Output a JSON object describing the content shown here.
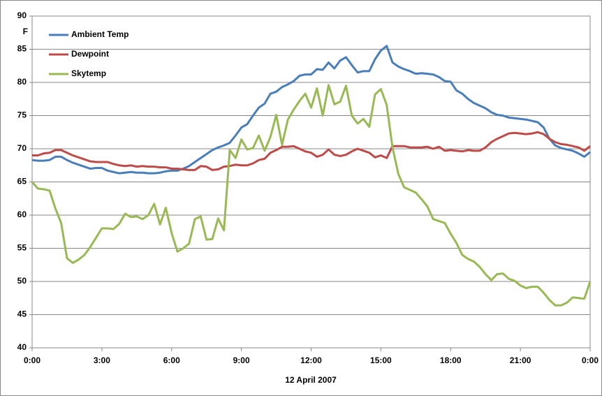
{
  "chart_data": {
    "type": "line",
    "y_label": "F",
    "x_label": "12 April 2007",
    "xlim": [
      0,
      24
    ],
    "ylim": [
      40,
      90
    ],
    "yticks": [
      40,
      45,
      50,
      55,
      60,
      65,
      70,
      75,
      80,
      85,
      90
    ],
    "xticks": [
      {
        "value": 0,
        "label": "0:00"
      },
      {
        "value": 3,
        "label": "3:00"
      },
      {
        "value": 6,
        "label": "6:00"
      },
      {
        "value": 9,
        "label": "9:00"
      },
      {
        "value": 12,
        "label": "12:00"
      },
      {
        "value": 15,
        "label": "15:00"
      },
      {
        "value": 18,
        "label": "18:00"
      },
      {
        "value": 21,
        "label": "21:00"
      },
      {
        "value": 24,
        "label": "0:00"
      }
    ],
    "grid": true,
    "legend": "upper left",
    "x": [
      0,
      0.25,
      0.5,
      0.75,
      1,
      1.25,
      1.5,
      1.75,
      2,
      2.25,
      2.5,
      2.75,
      3,
      3.25,
      3.5,
      3.75,
      4,
      4.25,
      4.5,
      4.75,
      5,
      5.25,
      5.5,
      5.75,
      6,
      6.25,
      6.5,
      6.75,
      7,
      7.25,
      7.5,
      7.75,
      8,
      8.25,
      8.5,
      8.75,
      9,
      9.25,
      9.5,
      9.75,
      10,
      10.25,
      10.5,
      10.75,
      11,
      11.25,
      11.5,
      11.75,
      12,
      12.25,
      12.5,
      12.75,
      13,
      13.25,
      13.5,
      13.75,
      14,
      14.25,
      14.5,
      14.75,
      15,
      15.25,
      15.5,
      15.75,
      16,
      16.25,
      16.5,
      16.75,
      17,
      17.25,
      17.5,
      17.75,
      18,
      18.25,
      18.5,
      18.75,
      19,
      19.25,
      19.5,
      19.75,
      20,
      20.25,
      20.5,
      20.75,
      21,
      21.25,
      21.5,
      21.75,
      22,
      22.25,
      22.5,
      22.75,
      23,
      23.25,
      23.5,
      23.75,
      24
    ],
    "series": [
      {
        "name": "Ambient Temp",
        "color": "#4a7ebb",
        "values": [
          68.3,
          68.2,
          68.2,
          68.3,
          68.8,
          68.8,
          68.3,
          67.9,
          67.6,
          67.3,
          67.0,
          67.1,
          67.1,
          66.7,
          66.5,
          66.3,
          66.4,
          66.5,
          66.4,
          66.4,
          66.3,
          66.3,
          66.4,
          66.6,
          66.7,
          66.7,
          67.0,
          67.4,
          68.0,
          68.6,
          69.2,
          69.8,
          70.2,
          70.5,
          70.9,
          72.0,
          73.2,
          73.7,
          75.0,
          76.2,
          76.8,
          78.3,
          78.6,
          79.3,
          79.7,
          80.2,
          81.0,
          81.2,
          81.2,
          82.0,
          81.9,
          83.0,
          82.1,
          83.3,
          83.8,
          82.6,
          81.5,
          81.7,
          81.7,
          83.5,
          84.8,
          85.5,
          83.0,
          82.4,
          82.0,
          81.7,
          81.3,
          81.4,
          81.3,
          81.2,
          80.8,
          80.2,
          80.1,
          78.8,
          78.3,
          77.5,
          76.9,
          76.5,
          76.1,
          75.5,
          75.1,
          75.0,
          74.7,
          74.6,
          74.5,
          74.4,
          74.2,
          74.0,
          73.2,
          71.5,
          70.5,
          70.1,
          69.9,
          69.7,
          69.3,
          68.8,
          69.5
        ]
      },
      {
        "name": "Dewpoint",
        "color": "#be4b48",
        "values": [
          69.0,
          69.0,
          69.3,
          69.4,
          69.8,
          69.8,
          69.4,
          69.0,
          68.7,
          68.4,
          68.1,
          68.0,
          68.0,
          68.0,
          67.7,
          67.5,
          67.4,
          67.5,
          67.3,
          67.4,
          67.3,
          67.3,
          67.2,
          67.2,
          67.0,
          67.0,
          66.9,
          66.8,
          66.8,
          67.4,
          67.3,
          66.8,
          66.9,
          67.3,
          67.4,
          67.6,
          67.5,
          67.5,
          67.8,
          68.3,
          68.5,
          69.4,
          69.8,
          70.3,
          70.3,
          70.4,
          70.0,
          69.6,
          69.4,
          68.8,
          69.1,
          69.9,
          69.1,
          68.9,
          69.1,
          69.6,
          70.0,
          69.7,
          69.4,
          68.7,
          69.0,
          68.6,
          70.4,
          70.4,
          70.4,
          70.2,
          70.2,
          70.2,
          70.3,
          70.0,
          70.3,
          69.7,
          69.8,
          69.7,
          69.6,
          69.8,
          69.7,
          69.7,
          70.2,
          71.0,
          71.5,
          71.9,
          72.3,
          72.4,
          72.3,
          72.2,
          72.3,
          72.5,
          72.2,
          71.5,
          71.0,
          70.7,
          70.6,
          70.4,
          70.2,
          69.7,
          70.4
        ]
      },
      {
        "name": "Skytemp",
        "color": "#98b954",
        "values": [
          65.0,
          64.0,
          63.9,
          63.7,
          61.0,
          58.8,
          53.5,
          52.8,
          53.3,
          54.0,
          55.2,
          56.6,
          58.0,
          58.0,
          57.9,
          58.7,
          60.2,
          59.7,
          59.8,
          59.4,
          60.0,
          61.7,
          58.6,
          61.1,
          57.3,
          54.5,
          55.0,
          55.7,
          59.4,
          59.8,
          56.3,
          56.4,
          59.5,
          57.7,
          69.8,
          68.6,
          71.4,
          69.9,
          70.1,
          72.0,
          69.7,
          71.8,
          75.1,
          70.6,
          74.4,
          75.9,
          77.2,
          78.3,
          76.2,
          79.1,
          75.0,
          79.6,
          76.7,
          77.1,
          79.5,
          75.0,
          73.8,
          74.5,
          73.3,
          78.2,
          79.0,
          76.6,
          70.2,
          66.2,
          64.2,
          63.8,
          63.4,
          62.4,
          61.3,
          59.4,
          59.1,
          58.8,
          57.2,
          55.8,
          54.0,
          53.4,
          53.0,
          52.2,
          51.1,
          50.2,
          51.1,
          51.2,
          50.4,
          50.1,
          49.4,
          49.0,
          49.2,
          49.2,
          48.3,
          47.2,
          46.4,
          46.4,
          46.8,
          47.6,
          47.5,
          47.4,
          50.0
        ]
      }
    ]
  }
}
